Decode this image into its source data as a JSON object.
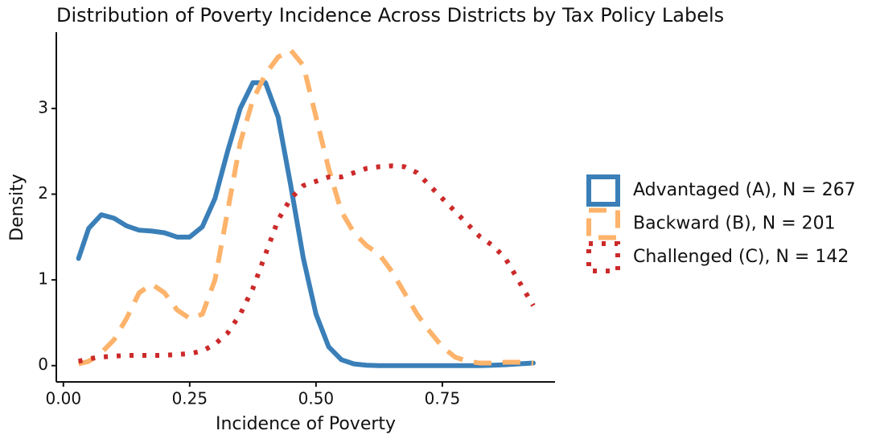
{
  "chart_data": {
    "type": "line",
    "title": "Distribution of Poverty Incidence Across Districts by Tax Policy Labels",
    "x_label": "Incidence of Poverty",
    "y_label": "Density",
    "x": [
      0.03,
      0.05,
      0.075,
      0.1,
      0.125,
      0.15,
      0.175,
      0.2,
      0.225,
      0.25,
      0.275,
      0.3,
      0.325,
      0.35,
      0.375,
      0.4,
      0.425,
      0.45,
      0.475,
      0.5,
      0.525,
      0.55,
      0.575,
      0.6,
      0.625,
      0.65,
      0.675,
      0.7,
      0.725,
      0.75,
      0.775,
      0.8,
      0.825,
      0.85,
      0.875,
      0.9,
      0.93
    ],
    "series": [
      {
        "name": "Advantaged (A), N = 267",
        "color": "#3a7fb8",
        "dash": "solid",
        "values": [
          1.25,
          1.6,
          1.76,
          1.72,
          1.63,
          1.58,
          1.57,
          1.55,
          1.5,
          1.5,
          1.62,
          1.95,
          2.5,
          3.0,
          3.3,
          3.3,
          2.9,
          2.1,
          1.25,
          0.6,
          0.22,
          0.07,
          0.02,
          0.005,
          0,
          0,
          0,
          0,
          0,
          0,
          0,
          0,
          0,
          0.005,
          0.01,
          0.02,
          0.03
        ]
      },
      {
        "name": "Backward (B), N = 201",
        "color": "#fdb36b",
        "dash": "dashed",
        "values": [
          0.02,
          0.05,
          0.15,
          0.3,
          0.55,
          0.85,
          0.95,
          0.85,
          0.65,
          0.55,
          0.6,
          1.0,
          1.8,
          2.6,
          3.1,
          3.4,
          3.6,
          3.68,
          3.5,
          2.9,
          2.3,
          1.8,
          1.55,
          1.4,
          1.3,
          1.1,
          0.85,
          0.6,
          0.4,
          0.22,
          0.1,
          0.05,
          0.03,
          0.03,
          0.04,
          0.04,
          0.03
        ]
      },
      {
        "name": "Challenged (C), N = 142",
        "color": "#cc2a2a",
        "dash": "dotted",
        "values": [
          0.05,
          0.08,
          0.1,
          0.11,
          0.12,
          0.12,
          0.12,
          0.12,
          0.13,
          0.14,
          0.17,
          0.25,
          0.38,
          0.6,
          0.9,
          1.3,
          1.7,
          1.95,
          2.1,
          2.15,
          2.2,
          2.2,
          2.25,
          2.3,
          2.32,
          2.33,
          2.32,
          2.25,
          2.1,
          1.95,
          1.8,
          1.65,
          1.5,
          1.4,
          1.25,
          1.0,
          0.7
        ]
      }
    ],
    "xlim": [
      -0.014,
      0.973
    ],
    "ylim": [
      -0.19,
      3.89
    ],
    "xticks": [
      {
        "value": 0,
        "label": "0.00"
      },
      {
        "value": 0.25,
        "label": "0.25"
      },
      {
        "value": 0.5,
        "label": "0.50"
      },
      {
        "value": 0.75,
        "label": "0.75"
      }
    ],
    "yticks": [
      0,
      1,
      2,
      3
    ],
    "legend": "right"
  }
}
